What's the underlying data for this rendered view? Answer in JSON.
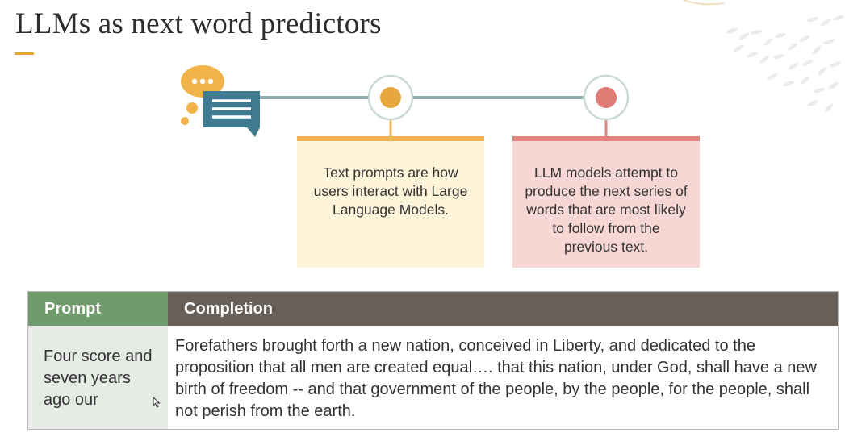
{
  "slide": {
    "title": "LLMs as next word predictors"
  },
  "diagram": {
    "colors": {
      "line": "#8fb0ae",
      "yellow_accent": "#ecb454",
      "pink_accent": "#e2857d",
      "chat_blue": "#3f7a90",
      "chat_orange": "#f1b34a"
    },
    "boxes": [
      {
        "text": "Text prompts are how users interact with Large Language Models."
      },
      {
        "text": "LLM models attempt to produce the next series of words that are most likely to follow from the previous text."
      }
    ]
  },
  "table": {
    "headers": {
      "prompt": "Prompt",
      "completion": "Completion"
    },
    "rows": [
      {
        "prompt": "Four score and seven years ago our",
        "completion": "Forefathers brought forth a new nation, conceived in Liberty, and dedicated to the proposition that all men are created equal…. that this nation, under God, shall have a new birth of freedom -- and that government of the people, by the people, for the people, shall not perish from the earth."
      }
    ]
  }
}
